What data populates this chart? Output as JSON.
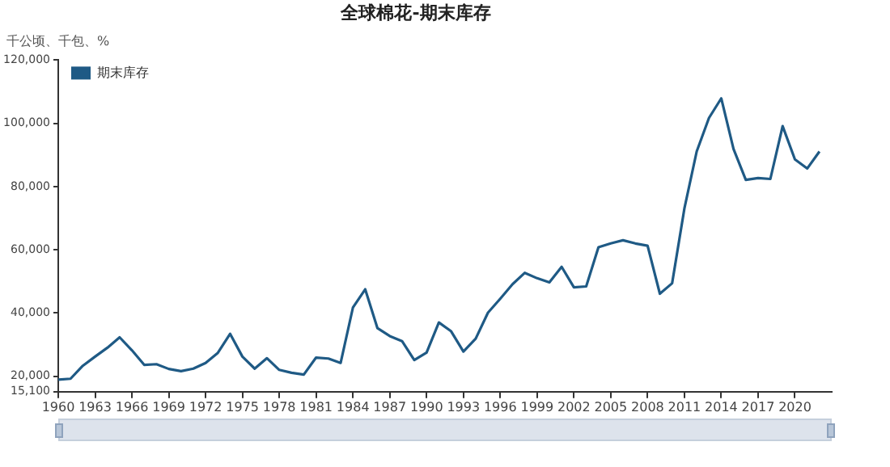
{
  "chart_data": {
    "type": "line",
    "title": "全球棉花-期末库存",
    "ylabel": "千公顷、千包、%",
    "x": [
      1960,
      1961,
      1962,
      1963,
      1964,
      1965,
      1966,
      1967,
      1968,
      1969,
      1970,
      1971,
      1972,
      1973,
      1974,
      1975,
      1976,
      1977,
      1978,
      1979,
      1980,
      1981,
      1982,
      1983,
      1984,
      1985,
      1986,
      1987,
      1988,
      1989,
      1990,
      1991,
      1992,
      1993,
      1994,
      1995,
      1996,
      1997,
      1998,
      1999,
      2000,
      2001,
      2002,
      2003,
      2004,
      2005,
      2006,
      2007,
      2008,
      2009,
      2010,
      2011,
      2012,
      2013,
      2014,
      2015,
      2016,
      2017,
      2018,
      2019,
      2020,
      2021,
      2022
    ],
    "series": [
      {
        "name": "期末库存",
        "color": "#1f5a85",
        "values": [
          18900,
          19200,
          23300,
          26200,
          29000,
          32300,
          28200,
          23600,
          23800,
          22300,
          21600,
          22400,
          24200,
          27400,
          33400,
          26200,
          22400,
          25700,
          22000,
          21100,
          20500,
          25900,
          25600,
          24200,
          41700,
          47500,
          35200,
          32700,
          31100,
          25100,
          27500,
          37000,
          34200,
          27800,
          31900,
          40100,
          44500,
          49100,
          52700,
          51000,
          49700,
          54600,
          48100,
          48400,
          60800,
          62000,
          63000,
          62000,
          61300,
          46100,
          49400,
          73100,
          91100,
          101700,
          107900,
          91900,
          82100,
          82700,
          82400,
          99100,
          88600,
          85700,
          91100
        ]
      }
    ],
    "xlim": [
      1960,
      2023
    ],
    "xticks": [
      1960,
      1963,
      1966,
      1969,
      1972,
      1975,
      1978,
      1981,
      1984,
      1987,
      1990,
      1993,
      1996,
      1999,
      2002,
      2005,
      2008,
      2011,
      2014,
      2017,
      2020
    ],
    "ylim": [
      15100,
      120000
    ],
    "yticks": [
      {
        "value": 15100,
        "label": "15,100"
      },
      {
        "value": 20000,
        "label": "20,000"
      },
      {
        "value": 40000,
        "label": "40,000"
      },
      {
        "value": 60000,
        "label": "60,000"
      },
      {
        "value": 80000,
        "label": "80,000"
      },
      {
        "value": 100000,
        "label": "100,000"
      },
      {
        "value": 120000,
        "label": "120,000"
      }
    ],
    "grid": false,
    "legend": "top left",
    "marker": "none",
    "line_style": "solid"
  }
}
